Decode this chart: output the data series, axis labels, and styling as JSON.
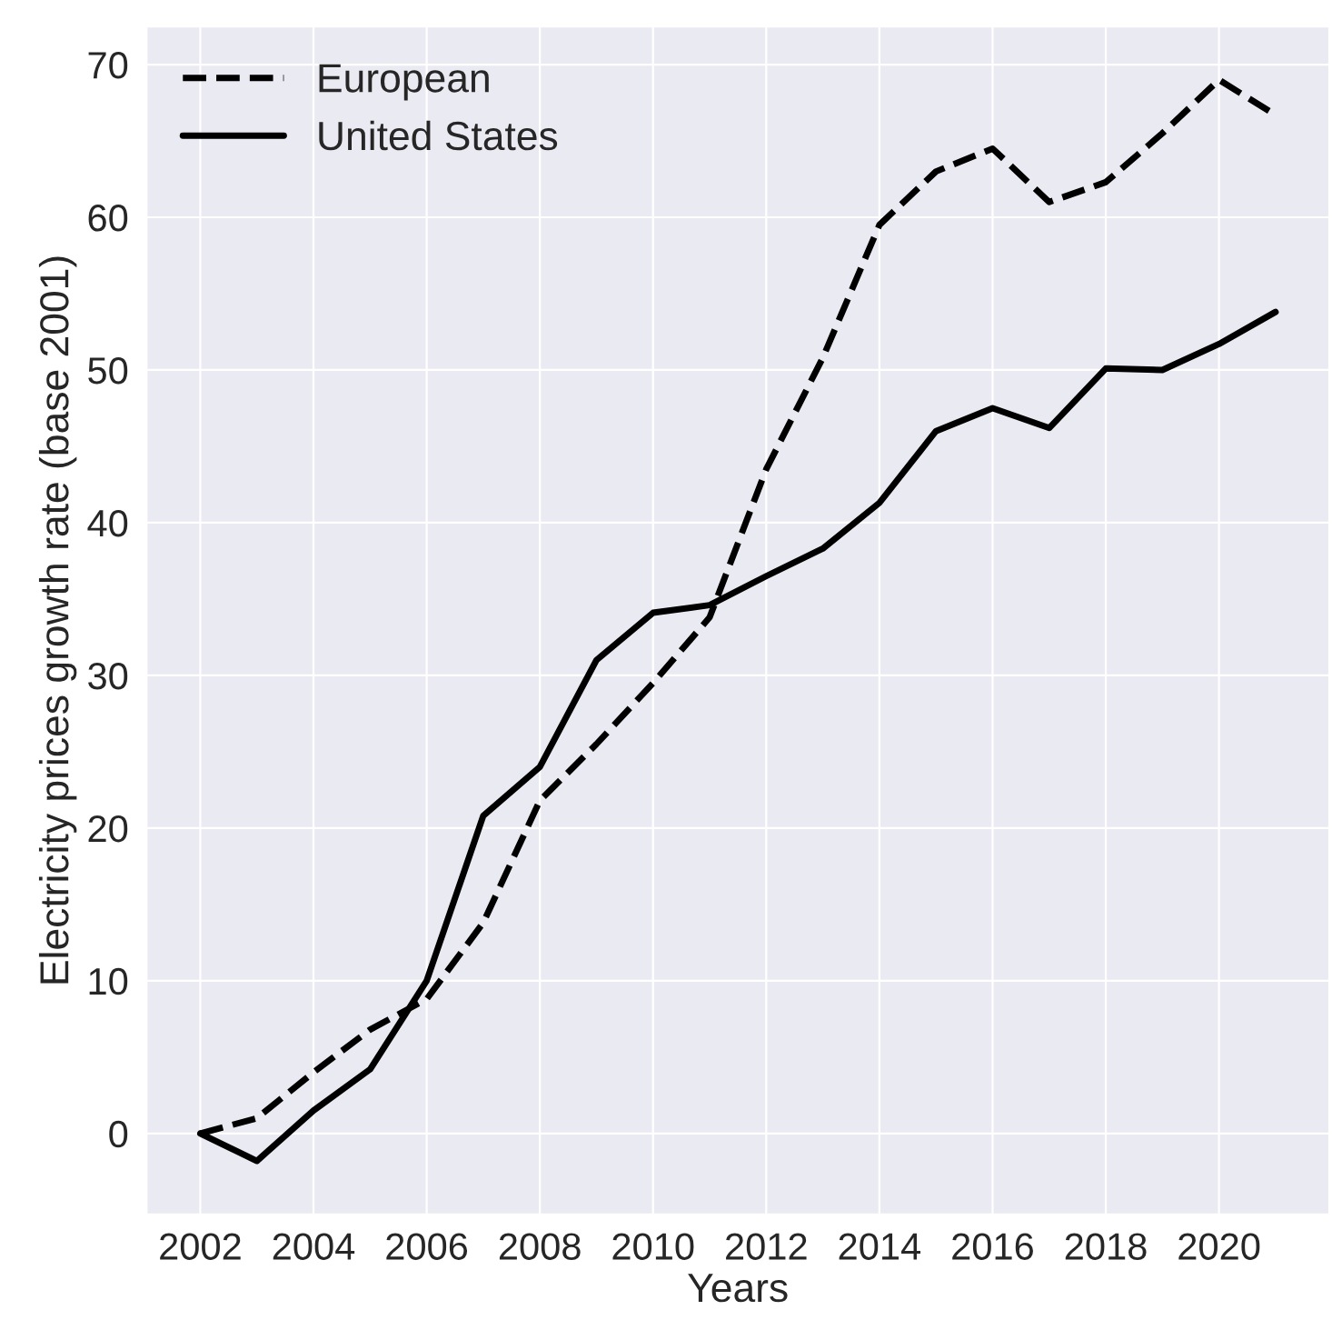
{
  "chart_data": {
    "type": "line",
    "xlabel": "Years",
    "ylabel": "Electricity prices growth rate (base 2001)",
    "x": [
      2002,
      2003,
      2004,
      2005,
      2006,
      2007,
      2008,
      2009,
      2010,
      2011,
      2012,
      2013,
      2014,
      2015,
      2016,
      2017,
      2018,
      2019,
      2020,
      2021
    ],
    "series": [
      {
        "name": "European",
        "color": "#000000",
        "line_style": "dashed",
        "values": [
          0,
          1,
          4,
          6.8,
          8.8,
          13.8,
          21.8,
          25.5,
          29.5,
          33.8,
          43.5,
          50.8,
          59.5,
          63,
          64.5,
          61,
          62.3,
          65.5,
          69,
          66.7
        ]
      },
      {
        "name": "United States",
        "color": "#000000",
        "line_style": "solid",
        "values": [
          0,
          -1.8,
          1.5,
          4.2,
          10,
          20.8,
          24,
          31,
          34.1,
          34.6,
          36.5,
          38.3,
          41.3,
          46,
          47.5,
          46.2,
          50.1,
          50,
          51.7,
          53.8
        ]
      }
    ],
    "xlim": [
      2001.05,
      2021.95
    ],
    "xticks": [
      2002,
      2004,
      2006,
      2008,
      2010,
      2012,
      2014,
      2016,
      2018,
      2020
    ],
    "ylim": [
      -5.3,
      72.5
    ],
    "yticks": [
      0,
      10,
      20,
      30,
      40,
      50,
      60,
      70
    ],
    "grid": true,
    "legend": "top left"
  }
}
